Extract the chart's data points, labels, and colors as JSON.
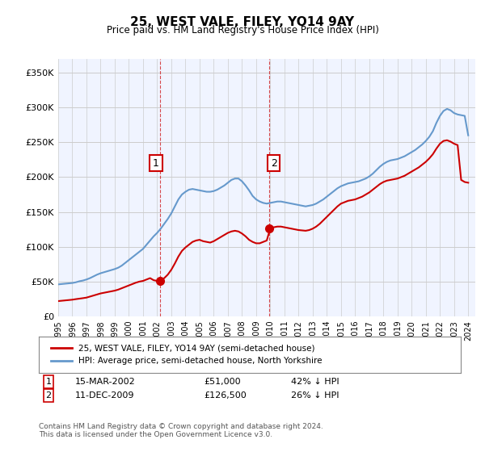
{
  "title": "25, WEST VALE, FILEY, YO14 9AY",
  "subtitle": "Price paid vs. HM Land Registry's House Price Index (HPI)",
  "xlabel": "",
  "ylabel": "",
  "ylim": [
    0,
    370000
  ],
  "yticks": [
    0,
    50000,
    100000,
    150000,
    200000,
    250000,
    300000,
    350000
  ],
  "ytick_labels": [
    "£0",
    "£50K",
    "£100K",
    "£150K",
    "£200K",
    "£250K",
    "£300K",
    "£350K"
  ],
  "sale1_date_num": 2002.21,
  "sale1_price": 51000,
  "sale2_date_num": 2009.95,
  "sale2_price": 126500,
  "line_color_red": "#cc0000",
  "line_color_blue": "#6699cc",
  "marker_color_red": "#cc0000",
  "vline_color": "#cc0000",
  "bg_color": "#f0f4ff",
  "legend1_label": "25, WEST VALE, FILEY, YO14 9AY (semi-detached house)",
  "legend2_label": "HPI: Average price, semi-detached house, North Yorkshire",
  "note1": "1   15-MAR-2002        £51,000        42% ↓ HPI",
  "note2": "2   11-DEC-2009        £126,500      26% ↓ HPI",
  "footnote": "Contains HM Land Registry data © Crown copyright and database right 2024.\nThis data is licensed under the Open Government Licence v3.0.",
  "hpi_years": [
    1995.0,
    1995.25,
    1995.5,
    1995.75,
    1996.0,
    1996.25,
    1996.5,
    1996.75,
    1997.0,
    1997.25,
    1997.5,
    1997.75,
    1998.0,
    1998.25,
    1998.5,
    1998.75,
    1999.0,
    1999.25,
    1999.5,
    1999.75,
    2000.0,
    2000.25,
    2000.5,
    2000.75,
    2001.0,
    2001.25,
    2001.5,
    2001.75,
    2002.0,
    2002.25,
    2002.5,
    2002.75,
    2003.0,
    2003.25,
    2003.5,
    2003.75,
    2004.0,
    2004.25,
    2004.5,
    2004.75,
    2005.0,
    2005.25,
    2005.5,
    2005.75,
    2006.0,
    2006.25,
    2006.5,
    2006.75,
    2007.0,
    2007.25,
    2007.5,
    2007.75,
    2008.0,
    2008.25,
    2008.5,
    2008.75,
    2009.0,
    2009.25,
    2009.5,
    2009.75,
    2010.0,
    2010.25,
    2010.5,
    2010.75,
    2011.0,
    2011.25,
    2011.5,
    2011.75,
    2012.0,
    2012.25,
    2012.5,
    2012.75,
    2013.0,
    2013.25,
    2013.5,
    2013.75,
    2014.0,
    2014.25,
    2014.5,
    2014.75,
    2015.0,
    2015.25,
    2015.5,
    2015.75,
    2016.0,
    2016.25,
    2016.5,
    2016.75,
    2017.0,
    2017.25,
    2017.5,
    2017.75,
    2018.0,
    2018.25,
    2018.5,
    2018.75,
    2019.0,
    2019.25,
    2019.5,
    2019.75,
    2020.0,
    2020.25,
    2020.5,
    2020.75,
    2021.0,
    2021.25,
    2021.5,
    2021.75,
    2022.0,
    2022.25,
    2022.5,
    2022.75,
    2023.0,
    2023.25,
    2023.5,
    2023.75,
    2024.0
  ],
  "hpi_values": [
    46000,
    46500,
    47000,
    47500,
    48000,
    49000,
    50500,
    51500,
    53000,
    55000,
    57500,
    60000,
    62000,
    63500,
    65000,
    66500,
    68000,
    70000,
    73000,
    77000,
    81000,
    85000,
    89000,
    93000,
    97000,
    103000,
    109000,
    115000,
    120000,
    126000,
    133000,
    140000,
    148000,
    158000,
    168000,
    175000,
    179000,
    182000,
    183000,
    182000,
    181000,
    180000,
    179000,
    179000,
    180000,
    182000,
    185000,
    188000,
    192000,
    196000,
    198000,
    198000,
    194000,
    188000,
    181000,
    173000,
    168000,
    165000,
    163000,
    162000,
    163000,
    164000,
    165000,
    165000,
    164000,
    163000,
    162000,
    161000,
    160000,
    159000,
    158000,
    159000,
    160000,
    162000,
    165000,
    168000,
    172000,
    176000,
    180000,
    184000,
    187000,
    189000,
    191000,
    192000,
    193000,
    194000,
    196000,
    198000,
    201000,
    205000,
    210000,
    215000,
    219000,
    222000,
    224000,
    225000,
    226000,
    228000,
    230000,
    233000,
    236000,
    239000,
    243000,
    247000,
    252000,
    258000,
    266000,
    278000,
    288000,
    295000,
    298000,
    296000,
    292000,
    290000,
    289000,
    288000,
    260000
  ],
  "red_years": [
    1995.0,
    1995.25,
    1995.5,
    1995.75,
    1996.0,
    1996.25,
    1996.5,
    1996.75,
    1997.0,
    1997.25,
    1997.5,
    1997.75,
    1998.0,
    1998.25,
    1998.5,
    1998.75,
    1999.0,
    1999.25,
    1999.5,
    1999.75,
    2000.0,
    2000.25,
    2000.5,
    2000.75,
    2001.0,
    2001.25,
    2001.5,
    2001.75,
    2002.0,
    2002.25,
    2002.5,
    2002.75,
    2003.0,
    2003.25,
    2003.5,
    2003.75,
    2004.0,
    2004.25,
    2004.5,
    2004.75,
    2005.0,
    2005.25,
    2005.5,
    2005.75,
    2006.0,
    2006.25,
    2006.5,
    2006.75,
    2007.0,
    2007.25,
    2007.5,
    2007.75,
    2008.0,
    2008.25,
    2008.5,
    2008.75,
    2009.0,
    2009.25,
    2009.5,
    2009.75,
    2010.0,
    2010.25,
    2010.5,
    2010.75,
    2011.0,
    2011.25,
    2011.5,
    2011.75,
    2012.0,
    2012.25,
    2012.5,
    2012.75,
    2013.0,
    2013.25,
    2013.5,
    2013.75,
    2014.0,
    2014.25,
    2014.5,
    2014.75,
    2015.0,
    2015.25,
    2015.5,
    2015.75,
    2016.0,
    2016.25,
    2016.5,
    2016.75,
    2017.0,
    2017.25,
    2017.5,
    2017.75,
    2018.0,
    2018.25,
    2018.5,
    2018.75,
    2019.0,
    2019.25,
    2019.5,
    2019.75,
    2020.0,
    2020.25,
    2020.5,
    2020.75,
    2021.0,
    2021.25,
    2021.5,
    2021.75,
    2022.0,
    2022.25,
    2022.5,
    2022.75,
    2023.0,
    2023.25,
    2023.5,
    2023.75,
    2024.0
  ],
  "red_values": [
    22000,
    22500,
    23000,
    23500,
    24000,
    24800,
    25500,
    26200,
    27000,
    28500,
    30000,
    31500,
    33000,
    34000,
    35000,
    36000,
    37000,
    38500,
    40500,
    42500,
    44500,
    46500,
    48500,
    50000,
    51000,
    53000,
    55000,
    52000,
    51000,
    51000,
    55000,
    60000,
    67000,
    76000,
    86000,
    94000,
    99000,
    103000,
    107000,
    109000,
    110000,
    108000,
    107000,
    106000,
    108000,
    111000,
    114000,
    117000,
    120000,
    122000,
    123000,
    122000,
    119000,
    115000,
    110000,
    107000,
    105000,
    105000,
    107000,
    109000,
    126500,
    128000,
    129000,
    129000,
    128000,
    127000,
    126000,
    125000,
    124000,
    123500,
    123000,
    124000,
    126000,
    129000,
    133000,
    138000,
    143000,
    148000,
    153000,
    158000,
    162000,
    164000,
    166000,
    167000,
    168000,
    170000,
    172000,
    175000,
    178000,
    182000,
    186000,
    190000,
    193000,
    195000,
    196000,
    197000,
    198000,
    200000,
    202000,
    205000,
    208000,
    211000,
    214000,
    218000,
    222000,
    227000,
    233000,
    241000,
    248000,
    252000,
    253000,
    251000,
    248000,
    246000,
    196000,
    193000,
    192000
  ]
}
